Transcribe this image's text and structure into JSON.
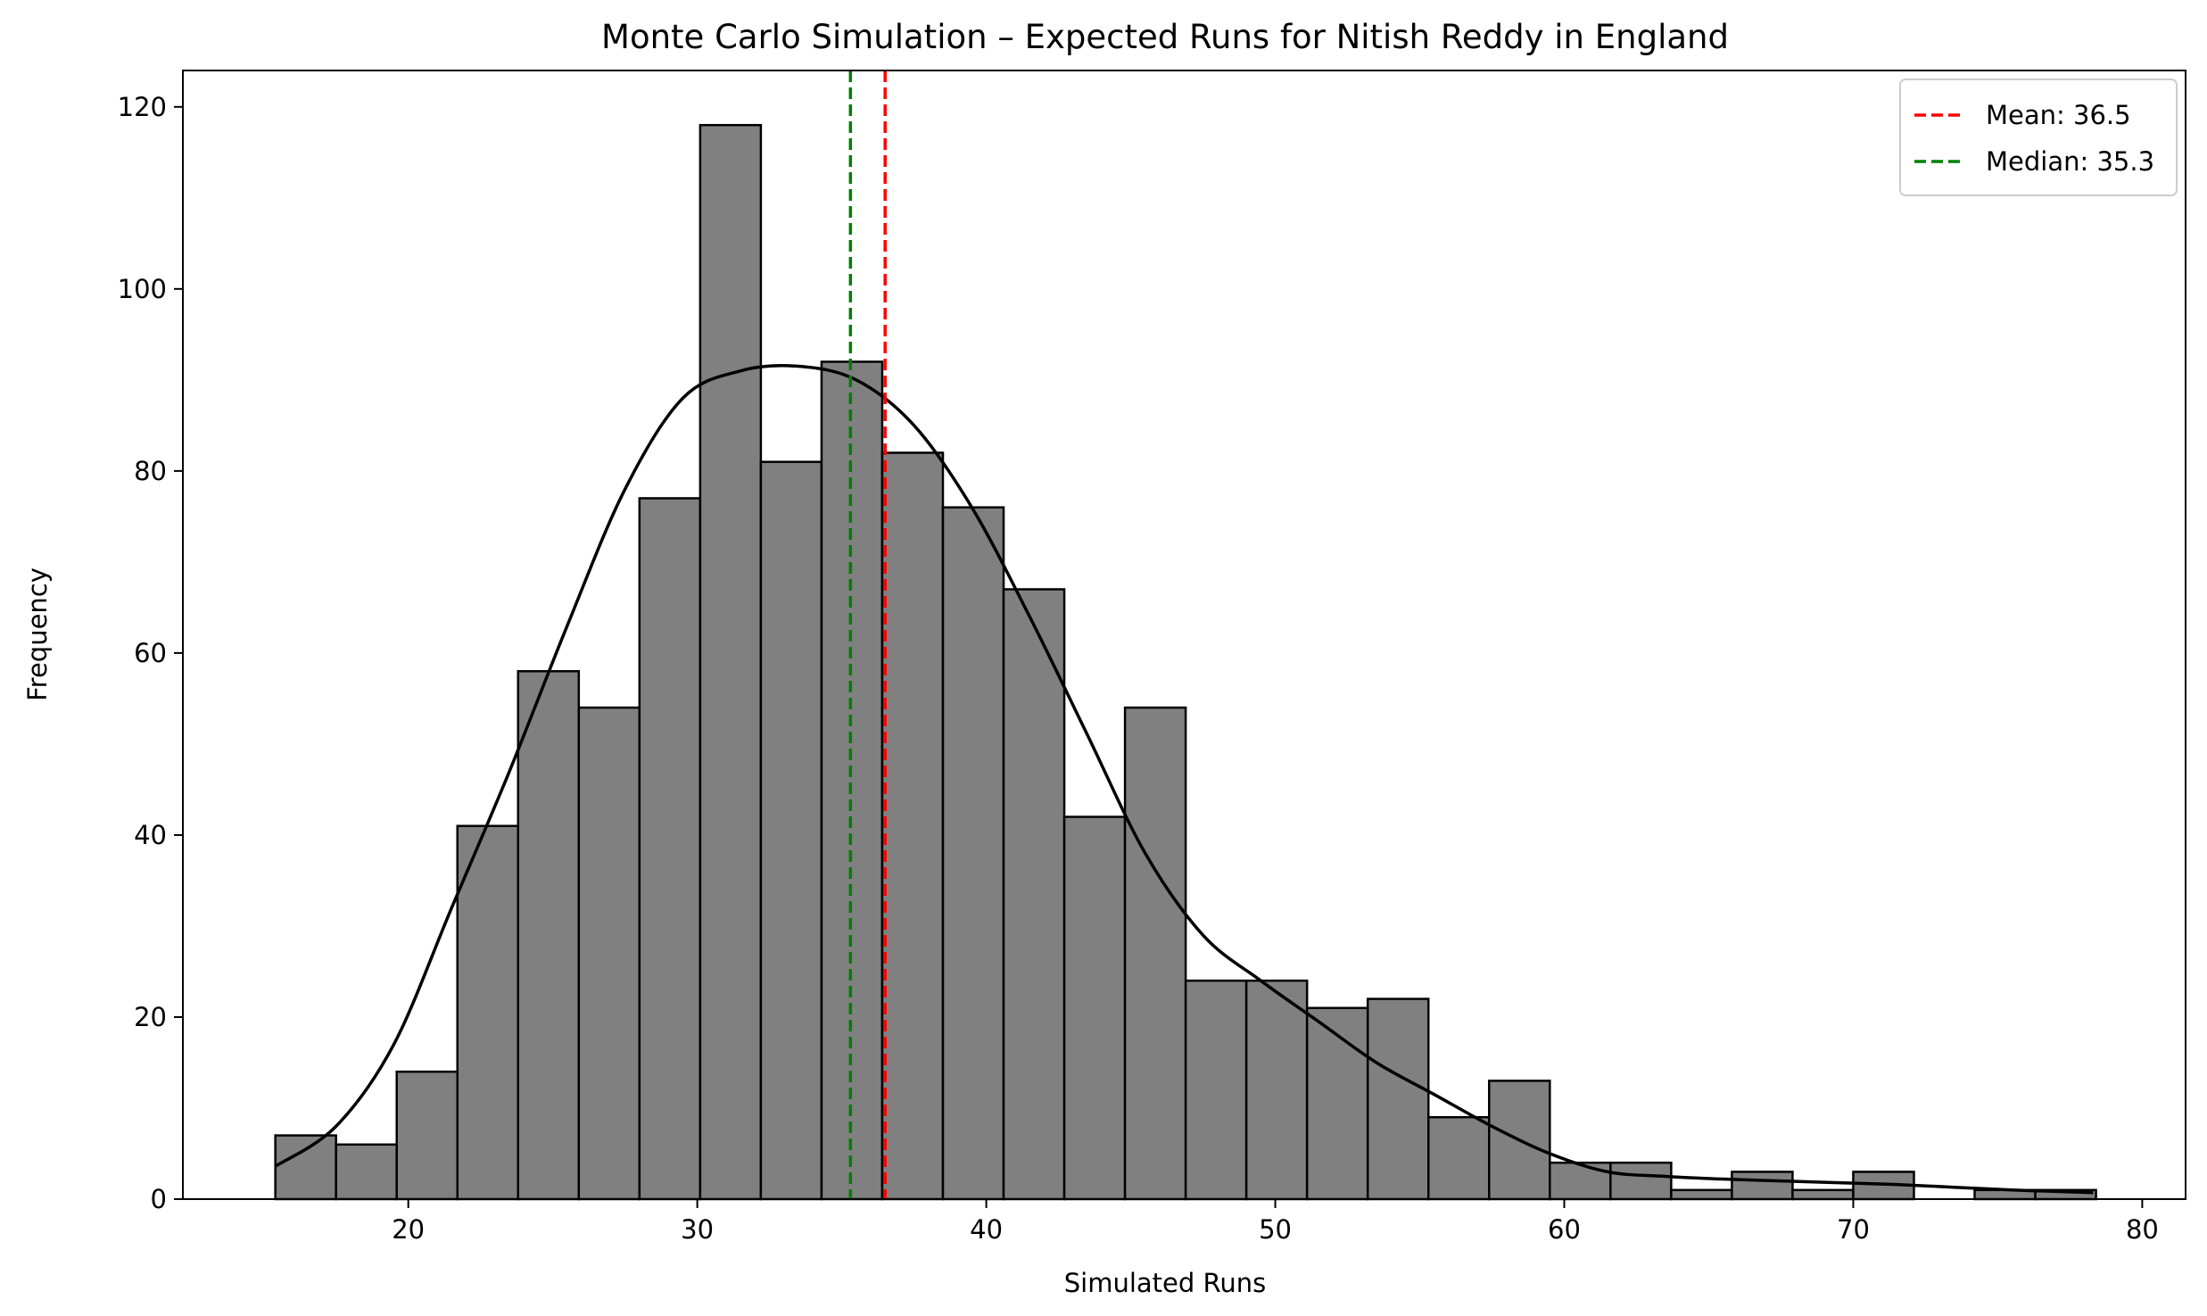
{
  "chart_data": {
    "type": "bar",
    "subtype": "histogram-with-kde",
    "title": "Monte Carlo Simulation – Expected Runs for Nitish Reddy in England",
    "xlabel": "Simulated Runs",
    "ylabel": "Frequency",
    "xlim": [
      12.2,
      81.5
    ],
    "ylim": [
      0,
      124
    ],
    "xticks": [
      20,
      30,
      40,
      50,
      60,
      70,
      80
    ],
    "yticks": [
      0,
      20,
      40,
      60,
      80,
      100,
      120
    ],
    "grid": false,
    "legend_position": "top-right",
    "bar_color": "#808080",
    "bar_edge_color": "#000000",
    "bins": {
      "start": 15.4,
      "width": 2.1,
      "counts": [
        7,
        6,
        14,
        41,
        58,
        54,
        77,
        118,
        81,
        92,
        82,
        76,
        67,
        42,
        54,
        24,
        24,
        21,
        22,
        9,
        13,
        4,
        4,
        1,
        3,
        1,
        3,
        0,
        1,
        1
      ]
    },
    "kde": {
      "x": [
        15.4,
        17.5,
        19.5,
        21.5,
        23.5,
        25.5,
        27.5,
        29.5,
        31.5,
        33.5,
        35.5,
        37.5,
        39.5,
        41.5,
        43.5,
        45.5,
        47.5,
        49.5,
        51.5,
        53.5,
        55.5,
        57.5,
        59.5,
        61.5,
        63.5,
        65.5,
        67.5,
        69.5,
        71.5,
        73.5,
        75.5,
        77.5,
        78.3
      ],
      "y": [
        3.6,
        8,
        17,
        32,
        47,
        63,
        78,
        88,
        91,
        91.5,
        90,
        85,
        76,
        64,
        51,
        38,
        29,
        24,
        19.5,
        15,
        11.5,
        8,
        5,
        3,
        2.5,
        2.2,
        2,
        1.8,
        1.6,
        1.3,
        1,
        0.8,
        0.7
      ],
      "color": "#000000"
    },
    "reference_lines": [
      {
        "label": "Mean: 36.5",
        "x": 36.5,
        "color": "#ff0000"
      },
      {
        "label": "Median: 35.3",
        "x": 35.3,
        "color": "#008000"
      }
    ]
  }
}
